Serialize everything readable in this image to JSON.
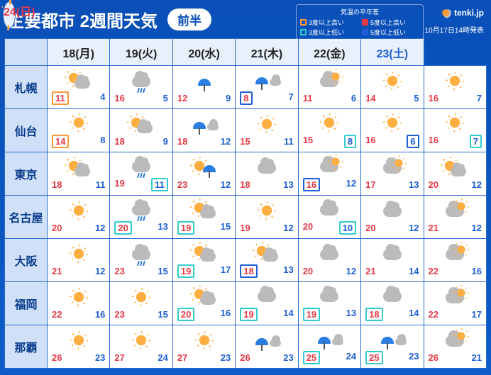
{
  "title": "主要都市 2週間天気",
  "period_label": "前半",
  "brand": "tenki.jp",
  "issued": "10月17日14時発表",
  "legend": {
    "title": "気温の平年差",
    "items": [
      {
        "swatch": "or",
        "label": "3度以上高い"
      },
      {
        "swatch": "rd",
        "label": "5度以上高い"
      },
      {
        "swatch": "cy",
        "label": "3度以上低い"
      },
      {
        "swatch": "bl",
        "label": "5度以上低い"
      }
    ]
  },
  "colors": {
    "background_top": "#0a4fb8",
    "background_bottom": "#0d5cc8",
    "header_cell": "#cfe0f8",
    "date_cell": "#e8f0fc",
    "high_temp": "#e63946",
    "low_temp": "#1d5fd6",
    "border": "#2a6cd0",
    "frame_orange": "#ff9933",
    "frame_red": "#e63946",
    "frame_cyan": "#33cccc",
    "frame_blue": "#1d5fd6"
  },
  "days": [
    {
      "label": "18(月)",
      "kind": "wd"
    },
    {
      "label": "19(火)",
      "kind": "wd"
    },
    {
      "label": "20(水)",
      "kind": "wd"
    },
    {
      "label": "21(木)",
      "kind": "wd"
    },
    {
      "label": "22(金)",
      "kind": "wd"
    },
    {
      "label": "23(土)",
      "kind": "sat"
    },
    {
      "label": "24(日)",
      "kind": "sun"
    }
  ],
  "cities": [
    {
      "name": "札幌",
      "cells": [
        {
          "icon": "sun_cloud",
          "hi": 11,
          "lo": 4,
          "hi_box": "or"
        },
        {
          "icon": "cloud_rain",
          "hi": 16,
          "lo": 5
        },
        {
          "icon": "umbrella",
          "hi": 12,
          "lo": 9
        },
        {
          "icon": "umbrella_cloud",
          "hi": 8,
          "lo": 7,
          "hi_box": "bl"
        },
        {
          "icon": "cloud_sun",
          "hi": 11,
          "lo": 6
        },
        {
          "icon": "sun",
          "hi": 14,
          "lo": 5
        },
        {
          "icon": "sun",
          "hi": 16,
          "lo": 7
        }
      ]
    },
    {
      "name": "仙台",
      "cells": [
        {
          "icon": "sun",
          "hi": 14,
          "lo": 8,
          "hi_box": "or"
        },
        {
          "icon": "sun_cloud",
          "hi": 18,
          "lo": 9
        },
        {
          "icon": "umbrella_cloud",
          "hi": 18,
          "lo": 12
        },
        {
          "icon": "sun",
          "hi": 15,
          "lo": 11
        },
        {
          "icon": "sun",
          "hi": 15,
          "lo": 8,
          "lo_box": "cy"
        },
        {
          "icon": "sun",
          "hi": 16,
          "lo": 6,
          "lo_box": "bl"
        },
        {
          "icon": "sun",
          "hi": 16,
          "lo": 7,
          "lo_box": "cy"
        }
      ]
    },
    {
      "name": "東京",
      "cells": [
        {
          "icon": "sun_cloud",
          "hi": 18,
          "lo": 11
        },
        {
          "icon": "cloud_rain",
          "hi": 19,
          "lo": 11,
          "lo_box": "cy"
        },
        {
          "icon": "sun_rain",
          "hi": 23,
          "lo": 12
        },
        {
          "icon": "cloud",
          "hi": 18,
          "lo": 13
        },
        {
          "icon": "cloud_sun",
          "hi": 16,
          "lo": 12,
          "hi_box": "bl"
        },
        {
          "icon": "cloud_sun",
          "hi": 17,
          "lo": 13
        },
        {
          "icon": "sun_cloud",
          "hi": 20,
          "lo": 12
        }
      ]
    },
    {
      "name": "名古屋",
      "cells": [
        {
          "icon": "sun",
          "hi": 20,
          "lo": 12
        },
        {
          "icon": "cloud_rain",
          "hi": 20,
          "lo": 13,
          "hi_box": "cy"
        },
        {
          "icon": "sun_cloud",
          "hi": 19,
          "lo": 15,
          "hi_box": "cy"
        },
        {
          "icon": "sun",
          "hi": 19,
          "lo": 12
        },
        {
          "icon": "cloud",
          "hi": 20,
          "lo": 10,
          "lo_box": "cy"
        },
        {
          "icon": "cloud",
          "hi": 20,
          "lo": 12
        },
        {
          "icon": "cloud_sun",
          "hi": 21,
          "lo": 12
        }
      ]
    },
    {
      "name": "大阪",
      "cells": [
        {
          "icon": "sun",
          "hi": 21,
          "lo": 12
        },
        {
          "icon": "cloud_rain",
          "hi": 23,
          "lo": 15
        },
        {
          "icon": "sun_cloud",
          "hi": 19,
          "lo": 17,
          "hi_box": "cy"
        },
        {
          "icon": "sun_cloud",
          "hi": 18,
          "lo": 13,
          "hi_box": "bl"
        },
        {
          "icon": "cloud",
          "hi": 20,
          "lo": 12
        },
        {
          "icon": "cloud",
          "hi": 21,
          "lo": 14
        },
        {
          "icon": "cloud_sun",
          "hi": 22,
          "lo": 16
        }
      ]
    },
    {
      "name": "福岡",
      "cells": [
        {
          "icon": "sun",
          "hi": 22,
          "lo": 16
        },
        {
          "icon": "sun",
          "hi": 23,
          "lo": 15
        },
        {
          "icon": "sun_cloud",
          "hi": 20,
          "lo": 16,
          "hi_box": "cy"
        },
        {
          "icon": "cloud",
          "hi": 19,
          "lo": 14,
          "hi_box": "cy"
        },
        {
          "icon": "cloud",
          "hi": 19,
          "lo": 13,
          "hi_box": "cy"
        },
        {
          "icon": "cloud",
          "hi": 18,
          "lo": 14,
          "hi_box": "cy"
        },
        {
          "icon": "cloud_sun",
          "hi": 22,
          "lo": 17
        }
      ]
    },
    {
      "name": "那覇",
      "cells": [
        {
          "icon": "sun",
          "hi": 26,
          "lo": 23
        },
        {
          "icon": "sun",
          "hi": 27,
          "lo": 24
        },
        {
          "icon": "sun",
          "hi": 27,
          "lo": 23
        },
        {
          "icon": "umbrella_cloud",
          "hi": 26,
          "lo": 23
        },
        {
          "icon": "umbrella_cloud",
          "hi": 25,
          "lo": 24,
          "hi_box": "cy"
        },
        {
          "icon": "umbrella_cloud",
          "hi": 25,
          "lo": 23,
          "hi_box": "cy"
        },
        {
          "icon": "cloud_sun",
          "hi": 26,
          "lo": 21
        }
      ]
    }
  ]
}
